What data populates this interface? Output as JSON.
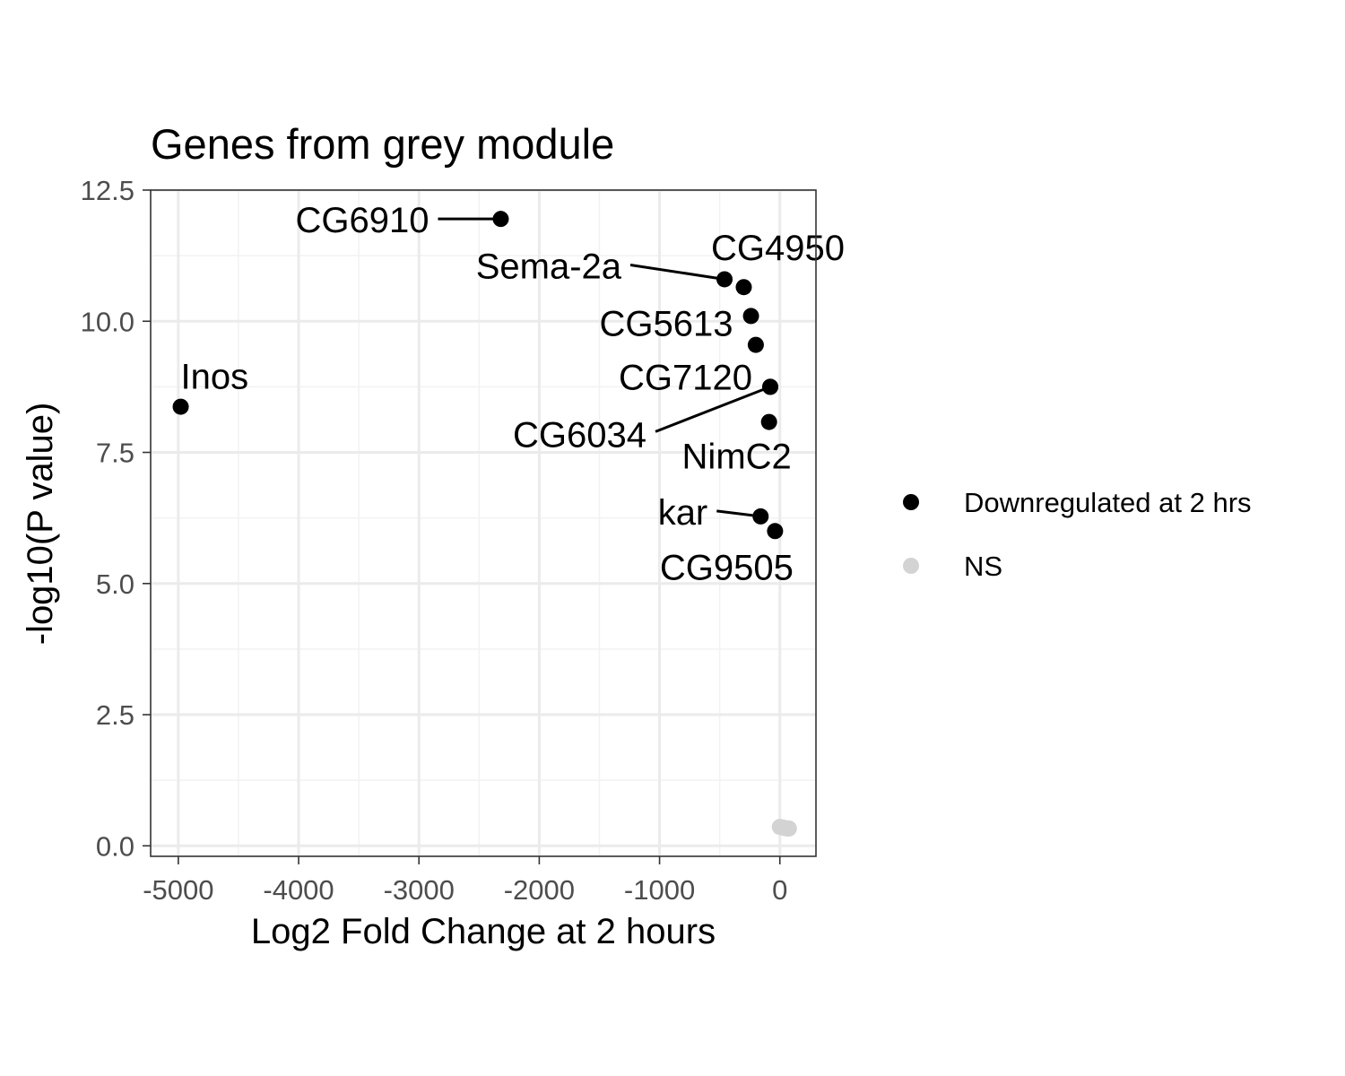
{
  "chart_data": {
    "type": "scatter",
    "title": "Genes from grey module",
    "xlabel": "Log2 Fold Change at 2 hours",
    "ylabel": "-log10(P value)",
    "xlim": [
      -5230,
      300
    ],
    "ylim": [
      -0.2,
      12.5
    ],
    "x_ticks": [
      -5000,
      -4000,
      -3000,
      -2000,
      -1000,
      0
    ],
    "x_tick_labels": [
      "-5000",
      "-4000",
      "-3000",
      "-2000",
      "-1000",
      "0"
    ],
    "y_ticks": [
      0,
      2.5,
      5,
      7.5,
      10,
      12.5
    ],
    "y_tick_labels": [
      "0.0",
      "2.5",
      "5.0",
      "7.5",
      "10.0",
      "12.5"
    ],
    "grid": true,
    "legend_position": "right",
    "series": [
      {
        "name": "Downregulated at 2 hrs",
        "color": "#000000",
        "points": [
          {
            "label": "CG6910",
            "x": -2320,
            "y": 11.95
          },
          {
            "label": "Sema-2a",
            "x": -460,
            "y": 10.8
          },
          {
            "label": "CG4950",
            "x": -300,
            "y": 10.65
          },
          {
            "label": "CG5613",
            "x": -240,
            "y": 10.1
          },
          {
            "label": "",
            "x": -200,
            "y": 9.55
          },
          {
            "label": "CG7120",
            "x": -80,
            "y": 8.75
          },
          {
            "label": "CG6034",
            "x": -80,
            "y": 8.75
          },
          {
            "label": "NimC2",
            "x": -90,
            "y": 8.08
          },
          {
            "label": "Inos",
            "x": -4980,
            "y": 8.37
          },
          {
            "label": "kar",
            "x": -160,
            "y": 6.28
          },
          {
            "label": "CG9505",
            "x": -40,
            "y": 6.0
          }
        ]
      },
      {
        "name": "NS",
        "color": "#d3d3d3",
        "points": [
          {
            "label": "",
            "x": 0,
            "y": 0.36
          },
          {
            "label": "",
            "x": 20,
            "y": 0.35
          },
          {
            "label": "",
            "x": 40,
            "y": 0.34
          },
          {
            "label": "",
            "x": 60,
            "y": 0.33
          },
          {
            "label": "",
            "x": 75,
            "y": 0.33
          }
        ]
      }
    ]
  }
}
